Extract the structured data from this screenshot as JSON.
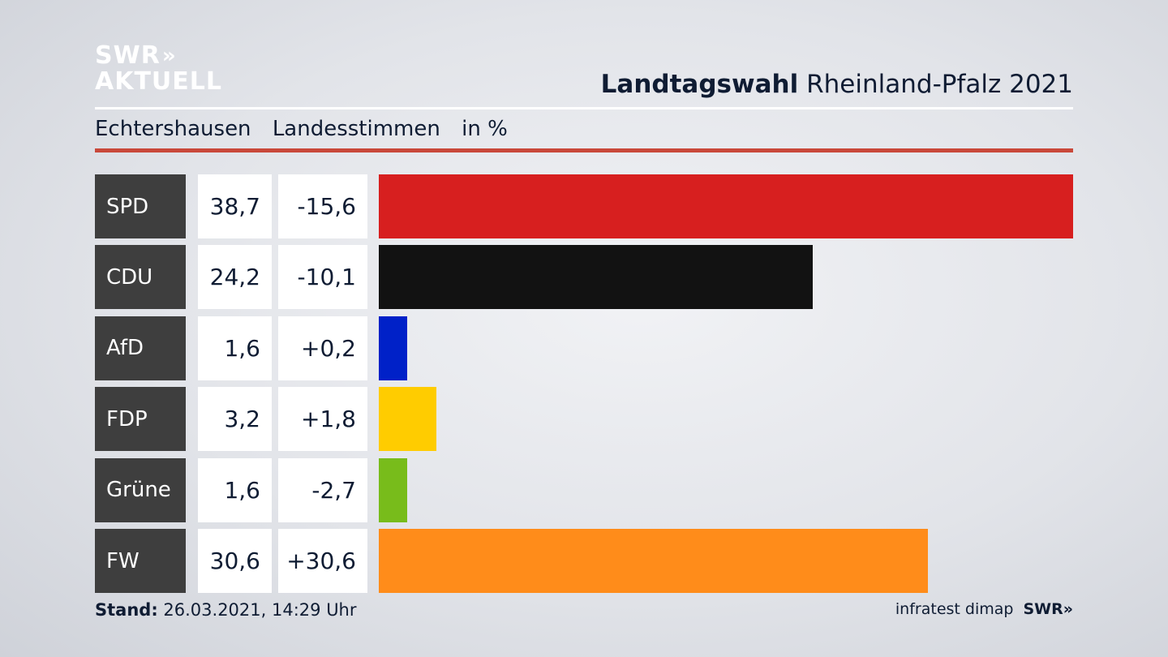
{
  "logo": {
    "line1": "SWR",
    "line1_chevron": "»",
    "line2": "AKTUELL"
  },
  "header": {
    "title_bold": "Landtagswahl",
    "title_rest": "Rheinland-Pfalz 2021",
    "sub_location": "Echtershausen",
    "sub_type": "Landesstimmen",
    "sub_unit": "in %"
  },
  "footer": {
    "stand_label": "Stand:",
    "stand_value": "26.03.2021, 14:29 Uhr",
    "source": "infratest dimap",
    "brand": "SWR»"
  },
  "chart_data": {
    "type": "bar",
    "orientation": "horizontal",
    "categories": [
      "SPD",
      "CDU",
      "AfD",
      "FDP",
      "Grüne",
      "FW"
    ],
    "values": [
      38.7,
      24.2,
      1.6,
      3.2,
      1.6,
      30.6
    ],
    "value_labels": [
      "38,7",
      "24,2",
      "1,6",
      "3,2",
      "1,6",
      "30,6"
    ],
    "diff_labels": [
      "-15,6",
      "-10,1",
      "+0,2",
      "+1,8",
      "-2,7",
      "+30,6"
    ],
    "colors": [
      "#d71f1f",
      "#121212",
      "#0021c8",
      "#ffcc00",
      "#78bc1b",
      "#ff8c1a"
    ],
    "xlim": [
      0,
      38.7
    ]
  }
}
